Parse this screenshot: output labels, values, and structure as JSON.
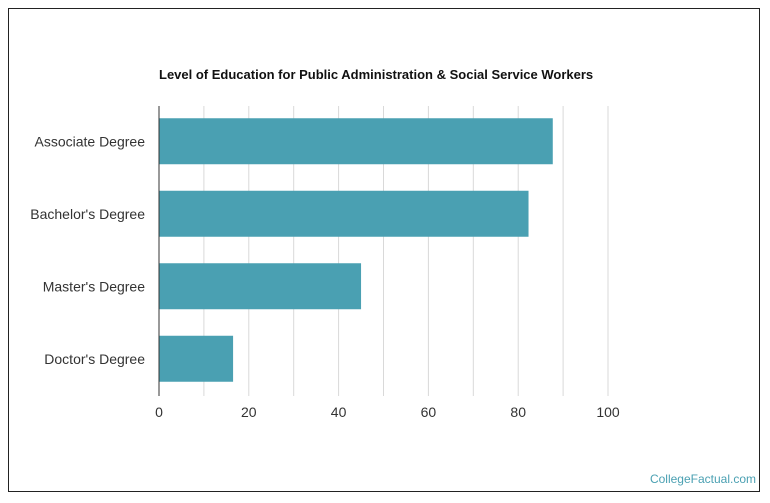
{
  "title": "Level of Education for Public Administration & Social Service Workers",
  "credit": "CollegeFactual.com",
  "colors": {
    "bar": "#4aa0b2",
    "grid": "#d9d9d9",
    "axis": "#333333",
    "credit": "#4aa0b2"
  },
  "chart_data": {
    "type": "bar",
    "orientation": "horizontal",
    "title": "Level of Education for Public Administration & Social Service Workers",
    "categories": [
      "Associate Degree",
      "Bachelor's Degree",
      "Master's Degree",
      "Doctor's Degree"
    ],
    "values": [
      87.7,
      82.3,
      45,
      16.5
    ],
    "xlim": [
      0,
      100
    ],
    "xticks": [
      0,
      20,
      40,
      60,
      80,
      100
    ],
    "grid": true,
    "legend": "none"
  }
}
